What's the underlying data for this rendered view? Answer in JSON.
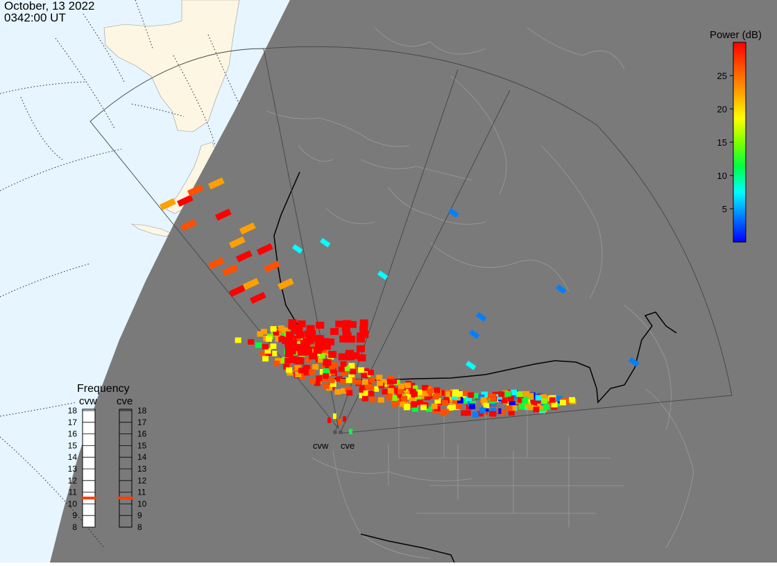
{
  "header": {
    "date": "October, 13 2022",
    "time": "0342:00 UT"
  },
  "colorbar": {
    "title": "Power (dB)",
    "ticks": [
      "25",
      "20",
      "15",
      "10",
      "5"
    ],
    "range": [
      0,
      30
    ],
    "colormap": [
      "#0000ff",
      "#0080ff",
      "#00ffff",
      "#00ff40",
      "#80ff00",
      "#ffff00",
      "#ffa000",
      "#ff5000",
      "#ff0000"
    ]
  },
  "frequency_panel": {
    "title": "Frequency",
    "radars": [
      {
        "name": "cvw",
        "current_mhz": 10.5
      },
      {
        "name": "cve",
        "current_mhz": 10.5
      }
    ],
    "scale_labels": [
      "18",
      "17",
      "16",
      "15",
      "14",
      "13",
      "12",
      "11",
      "10",
      "9",
      "8"
    ],
    "indicator_color": "#ff4000"
  },
  "map": {
    "ocean_color": "#e6f5ff",
    "night_color": "#7a7a7a",
    "land_color": "#fcf6e3",
    "site_labels": [
      "cvw",
      "cve"
    ]
  }
}
